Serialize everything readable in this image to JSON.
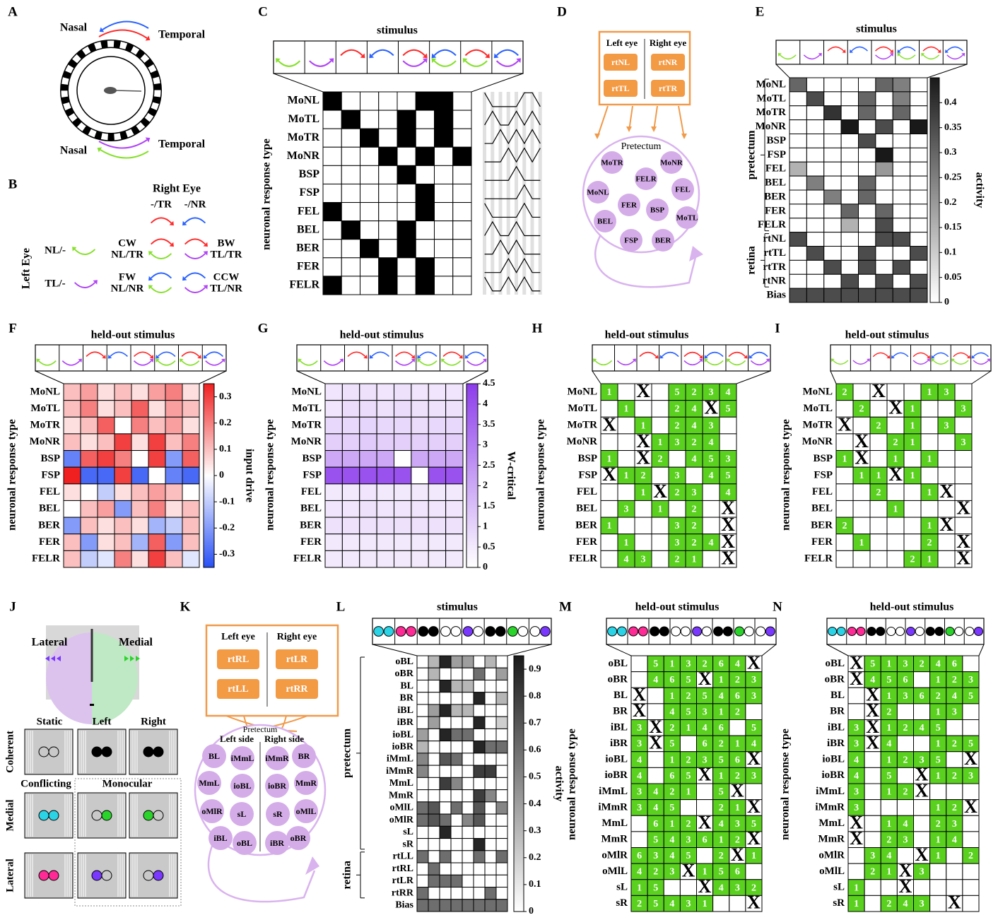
{
  "panel_letters": [
    "A",
    "B",
    "C",
    "D",
    "E",
    "F",
    "G",
    "H",
    "I",
    "J",
    "K",
    "L",
    "M",
    "N"
  ],
  "A": {
    "nasal_top": "Nasal",
    "temporal_top": "Temporal",
    "nasal_bottom": "Nasal",
    "temporal_bottom": "Temporal"
  },
  "B": {
    "right_eye": "Right Eye",
    "right_cols": [
      "-/TR",
      "-/NR"
    ],
    "left_eye": "Left Eye",
    "left_rows": [
      "NL/-",
      "TL/-"
    ],
    "combos": [
      {
        "name": "CW",
        "eyes": "NL/TR"
      },
      {
        "name": "BW",
        "eyes": "TL/TR"
      },
      {
        "name": "FW",
        "eyes": "NL/NR"
      },
      {
        "name": "CCW",
        "eyes": "TL/NR"
      }
    ]
  },
  "C": {
    "title": "stimulus",
    "ylabel": "neuronal response type",
    "rows": [
      "MoNL",
      "MoTL",
      "MoTR",
      "MoNR",
      "BSP",
      "FSP",
      "FEL",
      "BEL",
      "BER",
      "FER",
      "FELR"
    ],
    "matrix": [
      [
        1,
        0,
        0,
        0,
        0,
        1,
        1,
        0
      ],
      [
        0,
        1,
        0,
        0,
        1,
        0,
        1,
        0
      ],
      [
        0,
        0,
        1,
        0,
        1,
        0,
        1,
        0
      ],
      [
        0,
        0,
        0,
        1,
        0,
        1,
        0,
        1
      ],
      [
        0,
        0,
        0,
        0,
        1,
        0,
        0,
        0
      ],
      [
        0,
        0,
        0,
        0,
        0,
        1,
        0,
        0
      ],
      [
        1,
        0,
        0,
        0,
        0,
        1,
        0,
        0
      ],
      [
        0,
        1,
        0,
        0,
        1,
        0,
        0,
        0
      ],
      [
        0,
        0,
        1,
        0,
        1,
        0,
        0,
        0
      ],
      [
        0,
        0,
        0,
        1,
        0,
        1,
        0,
        0
      ],
      [
        1,
        0,
        0,
        1,
        0,
        1,
        0,
        0
      ]
    ]
  },
  "D": {
    "left_eye": "Left eye",
    "right_eye": "Right eye",
    "retina": [
      "rtNL",
      "rtNR",
      "rtTL",
      "rtTR"
    ],
    "region": "Pretectum",
    "nodes": [
      "MoTR",
      "MoNR",
      "FELR",
      "MoNL",
      "FEL",
      "FER",
      "BSP",
      "BEL",
      "MoTL",
      "FSP",
      "BER"
    ]
  },
  "E": {
    "title": "stimulus",
    "rows": [
      "MoNL",
      "MoTL",
      "MoTR",
      "MoNR",
      "BSP",
      "FSP",
      "FEL",
      "BEL",
      "BER",
      "FER",
      "FELR",
      "rtNL",
      "rtTL",
      "rtTR",
      "rtNR",
      "Bias"
    ],
    "groups": [
      "pretectum",
      "retina"
    ],
    "cbar_label": "activity",
    "clim": [
      0,
      0.45
    ],
    "cticks": [
      0,
      0.05,
      0.1,
      0.15,
      0.2,
      0.25,
      0.3,
      0.35,
      0.4
    ],
    "matrix": [
      [
        0.3,
        0,
        0,
        0,
        0,
        0.3,
        0.25,
        0
      ],
      [
        0,
        0.35,
        0,
        0,
        0.3,
        0,
        0.25,
        0
      ],
      [
        0,
        0,
        0.4,
        0,
        0.3,
        0,
        0.3,
        0
      ],
      [
        0,
        0,
        0,
        0.45,
        0,
        0.35,
        0,
        0.45
      ],
      [
        0,
        0,
        0,
        0,
        0.35,
        0,
        0,
        0
      ],
      [
        0,
        0,
        0,
        0,
        0,
        0.45,
        0,
        0
      ],
      [
        0.15,
        0,
        0,
        0,
        0,
        0.2,
        0,
        0
      ],
      [
        0,
        0.25,
        0,
        0,
        0.3,
        0,
        0,
        0
      ],
      [
        0,
        0,
        0.25,
        0,
        0.3,
        0,
        0,
        0
      ],
      [
        0,
        0,
        0,
        0.3,
        0,
        0.3,
        0,
        0
      ],
      [
        0,
        0,
        0,
        0.15,
        0,
        0.35,
        0,
        0
      ],
      [
        0.35,
        0,
        0,
        0,
        0,
        0.35,
        0.35,
        0
      ],
      [
        0,
        0.35,
        0,
        0,
        0.35,
        0,
        0,
        0.35
      ],
      [
        0,
        0,
        0.35,
        0,
        0.35,
        0,
        0.35,
        0
      ],
      [
        0,
        0,
        0,
        0.35,
        0,
        0.35,
        0,
        0.35
      ],
      [
        0.35,
        0.35,
        0.35,
        0.35,
        0.35,
        0.35,
        0.35,
        0.35
      ]
    ]
  },
  "F": {
    "title": "held-out stimulus",
    "ylabel": "neuronal response type",
    "rows": [
      "MoNL",
      "MoTL",
      "MoTR",
      "MoNR",
      "BSP",
      "FSP",
      "FEL",
      "BEL",
      "BER",
      "FER",
      "FELR"
    ],
    "cbar_label": "input drive",
    "clim": [
      -0.35,
      0.35
    ],
    "cticks": [
      0.3,
      0.2,
      0.1,
      0,
      -0.1,
      -0.2,
      -0.3
    ],
    "matrix": [
      [
        0.1,
        0.15,
        0.05,
        0.1,
        0.05,
        0.15,
        0.2,
        0.05
      ],
      [
        0.1,
        0.2,
        0.05,
        0.1,
        0.25,
        0.05,
        0.15,
        0.1
      ],
      [
        0.05,
        0.1,
        0.25,
        0,
        0.2,
        0.1,
        0.15,
        0.05
      ],
      [
        0.1,
        0.05,
        0.1,
        0.3,
        0.05,
        0.3,
        0.1,
        0.2
      ],
      [
        -0.25,
        0.25,
        0.3,
        0.2,
        0,
        0.3,
        -0.2,
        0.25
      ],
      [
        0.35,
        -0.3,
        -0.3,
        0.3,
        -0.3,
        0,
        -0.25,
        -0.3
      ],
      [
        0.05,
        0,
        -0.1,
        0.05,
        0.1,
        0.15,
        0.1,
        0
      ],
      [
        0,
        0.1,
        0.15,
        -0.2,
        0.1,
        0.2,
        0.05,
        0.1
      ],
      [
        -0.2,
        0.1,
        0.05,
        0.1,
        0.05,
        -0.15,
        -0.1,
        0.1
      ],
      [
        0.1,
        -0.2,
        0.05,
        0.1,
        -0.15,
        0.25,
        -0.2,
        0.1
      ],
      [
        0.1,
        -0.1,
        -0.05,
        0.2,
        0.05,
        0.3,
        0.1,
        -0.05
      ]
    ]
  },
  "G": {
    "title": "held-out stimulus",
    "ylabel": "neuronal response type",
    "rows": [
      "MoNL",
      "MoTL",
      "MoTR",
      "MoNR",
      "BSP",
      "FSP",
      "FEL",
      "BEL",
      "BER",
      "FER",
      "FELR"
    ],
    "cbar_label": "W-critical",
    "clim": [
      0,
      4.5
    ],
    "cticks": [
      0,
      0.5,
      1,
      1.5,
      2,
      2.5,
      3,
      3.5,
      4,
      4.5
    ],
    "matrix": [
      [
        0.6,
        0.7,
        0.7,
        0.6,
        0.7,
        0.6,
        0.6,
        0.6
      ],
      [
        0.6,
        0.8,
        0.8,
        0.7,
        0.8,
        0.7,
        0.7,
        0.7
      ],
      [
        0.9,
        0.9,
        1,
        0.9,
        0.9,
        0.8,
        0.9,
        0.9
      ],
      [
        1.1,
        1.1,
        1.2,
        1.1,
        1.1,
        1.1,
        1.1,
        1.1
      ],
      [
        2,
        2,
        2,
        2,
        0,
        2,
        2,
        2
      ],
      [
        4,
        4,
        4,
        4,
        4,
        0,
        4,
        4
      ],
      [
        0.5,
        0.5,
        0.6,
        0.5,
        0.5,
        0.5,
        0.5,
        0.5
      ],
      [
        0.6,
        0.6,
        0.7,
        0.6,
        0.6,
        0.6,
        0.6,
        0.6
      ],
      [
        0.7,
        0.7,
        0.7,
        0.7,
        0.7,
        0.7,
        0.7,
        0.7
      ],
      [
        0.5,
        0.5,
        0.5,
        0.5,
        0.5,
        0.5,
        0.5,
        0.5
      ],
      [
        0.5,
        0.5,
        0.5,
        0.5,
        0.5,
        0.5,
        0.5,
        0.5
      ]
    ]
  },
  "H": {
    "title": "held-out stimulus",
    "ylabel": "neuronal response type",
    "rows": [
      "MoNL",
      "MoTL",
      "MoTR",
      "MoNR",
      "BSP",
      "FSP",
      "FEL",
      "BEL",
      "BER",
      "FER",
      "FELR"
    ],
    "cells": [
      [
        1,
        null,
        "X",
        null,
        5,
        2,
        3,
        4
      ],
      [
        null,
        1,
        null,
        null,
        2,
        4,
        "X",
        5
      ],
      [
        "X",
        null,
        1,
        null,
        2,
        4,
        3,
        null
      ],
      [
        null,
        null,
        "X",
        1,
        3,
        2,
        4,
        null
      ],
      [
        1,
        null,
        "X",
        2,
        null,
        4,
        5,
        3
      ],
      [
        "X",
        1,
        2,
        null,
        3,
        null,
        4,
        5
      ],
      [
        null,
        null,
        1,
        "X",
        2,
        3,
        null,
        4
      ],
      [
        null,
        3,
        null,
        1,
        null,
        2,
        null,
        "X"
      ],
      [
        1,
        null,
        null,
        null,
        3,
        2,
        null,
        "X"
      ],
      [
        null,
        1,
        null,
        null,
        3,
        2,
        4,
        "X"
      ],
      [
        null,
        4,
        3,
        null,
        2,
        1,
        null,
        "X"
      ]
    ]
  },
  "I": {
    "title": "held-out stimulus",
    "ylabel": "neuronal response type",
    "rows": [
      "MoNL",
      "MoTL",
      "MoTR",
      "MoNR",
      "BSP",
      "FSP",
      "FEL",
      "BEL",
      "BER",
      "FER",
      "FELR"
    ],
    "cells": [
      [
        2,
        null,
        "X",
        null,
        null,
        1,
        3,
        null
      ],
      [
        null,
        2,
        null,
        "X",
        1,
        null,
        null,
        3
      ],
      [
        "X",
        null,
        2,
        null,
        1,
        null,
        3,
        null
      ],
      [
        null,
        "X",
        null,
        2,
        1,
        null,
        null,
        3
      ],
      [
        1,
        "X",
        null,
        1,
        null,
        1,
        null,
        null
      ],
      [
        null,
        1,
        1,
        "X",
        1,
        null,
        null,
        null
      ],
      [
        null,
        null,
        2,
        null,
        null,
        1,
        "X",
        null
      ],
      [
        null,
        null,
        null,
        1,
        null,
        null,
        null,
        "X"
      ],
      [
        2,
        null,
        null,
        null,
        null,
        1,
        "X",
        null
      ],
      [
        null,
        1,
        null,
        null,
        null,
        2,
        null,
        "X"
      ],
      [
        null,
        null,
        null,
        null,
        2,
        1,
        null,
        "X"
      ]
    ]
  },
  "J": {
    "lateral": "Lateral",
    "medial": "Medial",
    "cols": [
      "Static",
      "Left",
      "Right"
    ],
    "coherent": "Coherent",
    "conflicting": "Conflicting",
    "monocular": "Monocular",
    "rows": [
      "Medial",
      "Lateral"
    ]
  },
  "K": {
    "left_eye": "Left eye",
    "right_eye": "Right eye",
    "retina": [
      "rtRL",
      "rtLR",
      "rtLL",
      "rtRR"
    ],
    "region": "Pretectum",
    "left_side": "Left side",
    "right_side": "Right side",
    "nodes": [
      "BL",
      "iMmL",
      "iMmR",
      "BR",
      "MmL",
      "ioBL",
      "ioBR",
      "MmR",
      "oMlR",
      "sL",
      "sR",
      "oMlL",
      "iBL",
      "oBL",
      "iBR",
      "oBR"
    ]
  },
  "L": {
    "title": "stimulus",
    "rows": [
      "oBL",
      "oBR",
      "BL",
      "BR",
      "iBL",
      "iBR",
      "ioBL",
      "ioBR",
      "iMmL",
      "iMmR",
      "MmL",
      "MmR",
      "oMlL",
      "oMlR",
      "sL",
      "sR",
      "rtLL",
      "rtRL",
      "rtLR",
      "rtRR",
      "Bias"
    ],
    "groups": [
      "pretectum",
      "retina"
    ],
    "cbar_label": "activity",
    "clim": [
      0,
      0.95
    ],
    "cticks": [
      0,
      0.1,
      0.2,
      0.3,
      0.4,
      0.5,
      0.6,
      0.7,
      0.8,
      0.9
    ],
    "matrix": [
      [
        0,
        0.3,
        0.9,
        0.4,
        0.4,
        0,
        0.3,
        0
      ],
      [
        0,
        0.3,
        0,
        0,
        0,
        0.6,
        0,
        0.4
      ],
      [
        0,
        0,
        0.9,
        0.3,
        0.3,
        0,
        0,
        0
      ],
      [
        0,
        0,
        0,
        0,
        0,
        0.9,
        0,
        0.3
      ],
      [
        0,
        0.4,
        0.9,
        0.3,
        0.3,
        0,
        0,
        0
      ],
      [
        0,
        0.4,
        0,
        0,
        0,
        0.9,
        0,
        0.2
      ],
      [
        0.4,
        0,
        0.9,
        0.6,
        0.6,
        0,
        0,
        0
      ],
      [
        0.3,
        0,
        0,
        0,
        0,
        0.9,
        0.6,
        0.6
      ],
      [
        0.5,
        0,
        0.7,
        0.6,
        0,
        0,
        0,
        0
      ],
      [
        0.5,
        0,
        0,
        0,
        0,
        0.8,
        0.8,
        0
      ],
      [
        0,
        0,
        0.8,
        0.5,
        0,
        0,
        0,
        0
      ],
      [
        0,
        0,
        0,
        0,
        0,
        0.8,
        0.5,
        0
      ],
      [
        0.6,
        0.7,
        0,
        0.6,
        0,
        0.7,
        0,
        0.5
      ],
      [
        0.6,
        0.7,
        0.6,
        0,
        0.5,
        0.7,
        0,
        0
      ],
      [
        0,
        0,
        0.9,
        0,
        0,
        0,
        0,
        0
      ],
      [
        0,
        0,
        0,
        0,
        0,
        0.9,
        0,
        0
      ],
      [
        0.6,
        0,
        0.6,
        0,
        0,
        0.6,
        0,
        0.6
      ],
      [
        0,
        0.6,
        0,
        0,
        0,
        0,
        0,
        0
      ],
      [
        0,
        0.6,
        0.6,
        0.6,
        0,
        0,
        0,
        0
      ],
      [
        0.6,
        0,
        0,
        0,
        0,
        0,
        0.6,
        0
      ],
      [
        0.6,
        0.6,
        0.6,
        0.6,
        0.6,
        0.6,
        0.6,
        0.6
      ]
    ]
  },
  "M": {
    "title": "held-out stimulus",
    "ylabel": "neuronal response type",
    "rows": [
      "oBL",
      "oBR",
      "BL",
      "BR",
      "iBL",
      "iBR",
      "ioBL",
      "ioBR",
      "iMmL",
      "iMmR",
      "MmL",
      "MmR",
      "oMlR",
      "oMlL",
      "sL",
      "sR"
    ],
    "cells": [
      [
        null,
        5,
        1,
        3,
        2,
        6,
        4,
        "X"
      ],
      [
        null,
        4,
        6,
        5,
        "X",
        1,
        2,
        3
      ],
      [
        "X",
        null,
        1,
        2,
        5,
        4,
        6,
        3
      ],
      [
        "X",
        null,
        4,
        5,
        3,
        1,
        2,
        null
      ],
      [
        3,
        "X",
        2,
        1,
        4,
        6,
        null,
        5
      ],
      [
        3,
        "X",
        5,
        null,
        6,
        2,
        1,
        4
      ],
      [
        4,
        null,
        1,
        2,
        3,
        5,
        6,
        "X"
      ],
      [
        4,
        null,
        6,
        5,
        "X",
        1,
        2,
        3
      ],
      [
        3,
        4,
        2,
        1,
        null,
        5,
        "X",
        null
      ],
      [
        3,
        4,
        5,
        null,
        null,
        2,
        1,
        "X"
      ],
      [
        null,
        6,
        1,
        2,
        "X",
        4,
        3,
        5
      ],
      [
        null,
        5,
        4,
        3,
        6,
        1,
        2,
        "X"
      ],
      [
        6,
        3,
        4,
        5,
        null,
        2,
        "X",
        1
      ],
      [
        4,
        2,
        3,
        "X",
        1,
        5,
        6,
        null
      ],
      [
        1,
        5,
        null,
        null,
        "X",
        4,
        3,
        2
      ],
      [
        2,
        5,
        4,
        3,
        1,
        null,
        null,
        "X"
      ]
    ]
  },
  "N": {
    "title": "held-out stimulus",
    "ylabel": "neuronal response type",
    "rows": [
      "oBL",
      "oBR",
      "BL",
      "BR",
      "iBL",
      "iBR",
      "ioBL",
      "ioBR",
      "iMmL",
      "iMmR",
      "MmL",
      "MmR",
      "oMlR",
      "oMlL",
      "sL",
      "sR"
    ],
    "cells": [
      [
        "X",
        5,
        1,
        3,
        2,
        4,
        6,
        null
      ],
      [
        "X",
        4,
        5,
        6,
        null,
        1,
        2,
        3
      ],
      [
        null,
        "X",
        1,
        3,
        6,
        2,
        4,
        5
      ],
      [
        null,
        "X",
        2,
        null,
        null,
        1,
        3,
        null
      ],
      [
        3,
        "X",
        1,
        2,
        4,
        5,
        null,
        null
      ],
      [
        3,
        "X",
        4,
        null,
        null,
        1,
        2,
        5
      ],
      [
        4,
        null,
        1,
        2,
        3,
        5,
        null,
        "X"
      ],
      [
        4,
        null,
        5,
        null,
        "X",
        1,
        2,
        3
      ],
      [
        3,
        null,
        1,
        2,
        "X",
        null,
        null,
        null
      ],
      [
        3,
        null,
        null,
        null,
        null,
        1,
        2,
        "X"
      ],
      [
        "X",
        null,
        1,
        4,
        null,
        2,
        3,
        null
      ],
      [
        "X",
        null,
        2,
        3,
        null,
        1,
        4,
        null
      ],
      [
        null,
        3,
        4,
        null,
        "X",
        1,
        null,
        2
      ],
      [
        null,
        2,
        1,
        "X",
        3,
        null,
        null,
        null
      ],
      [
        1,
        null,
        null,
        "X",
        null,
        null,
        null,
        null
      ],
      [
        1,
        null,
        2,
        4,
        3,
        null,
        "X",
        null
      ]
    ]
  }
}
